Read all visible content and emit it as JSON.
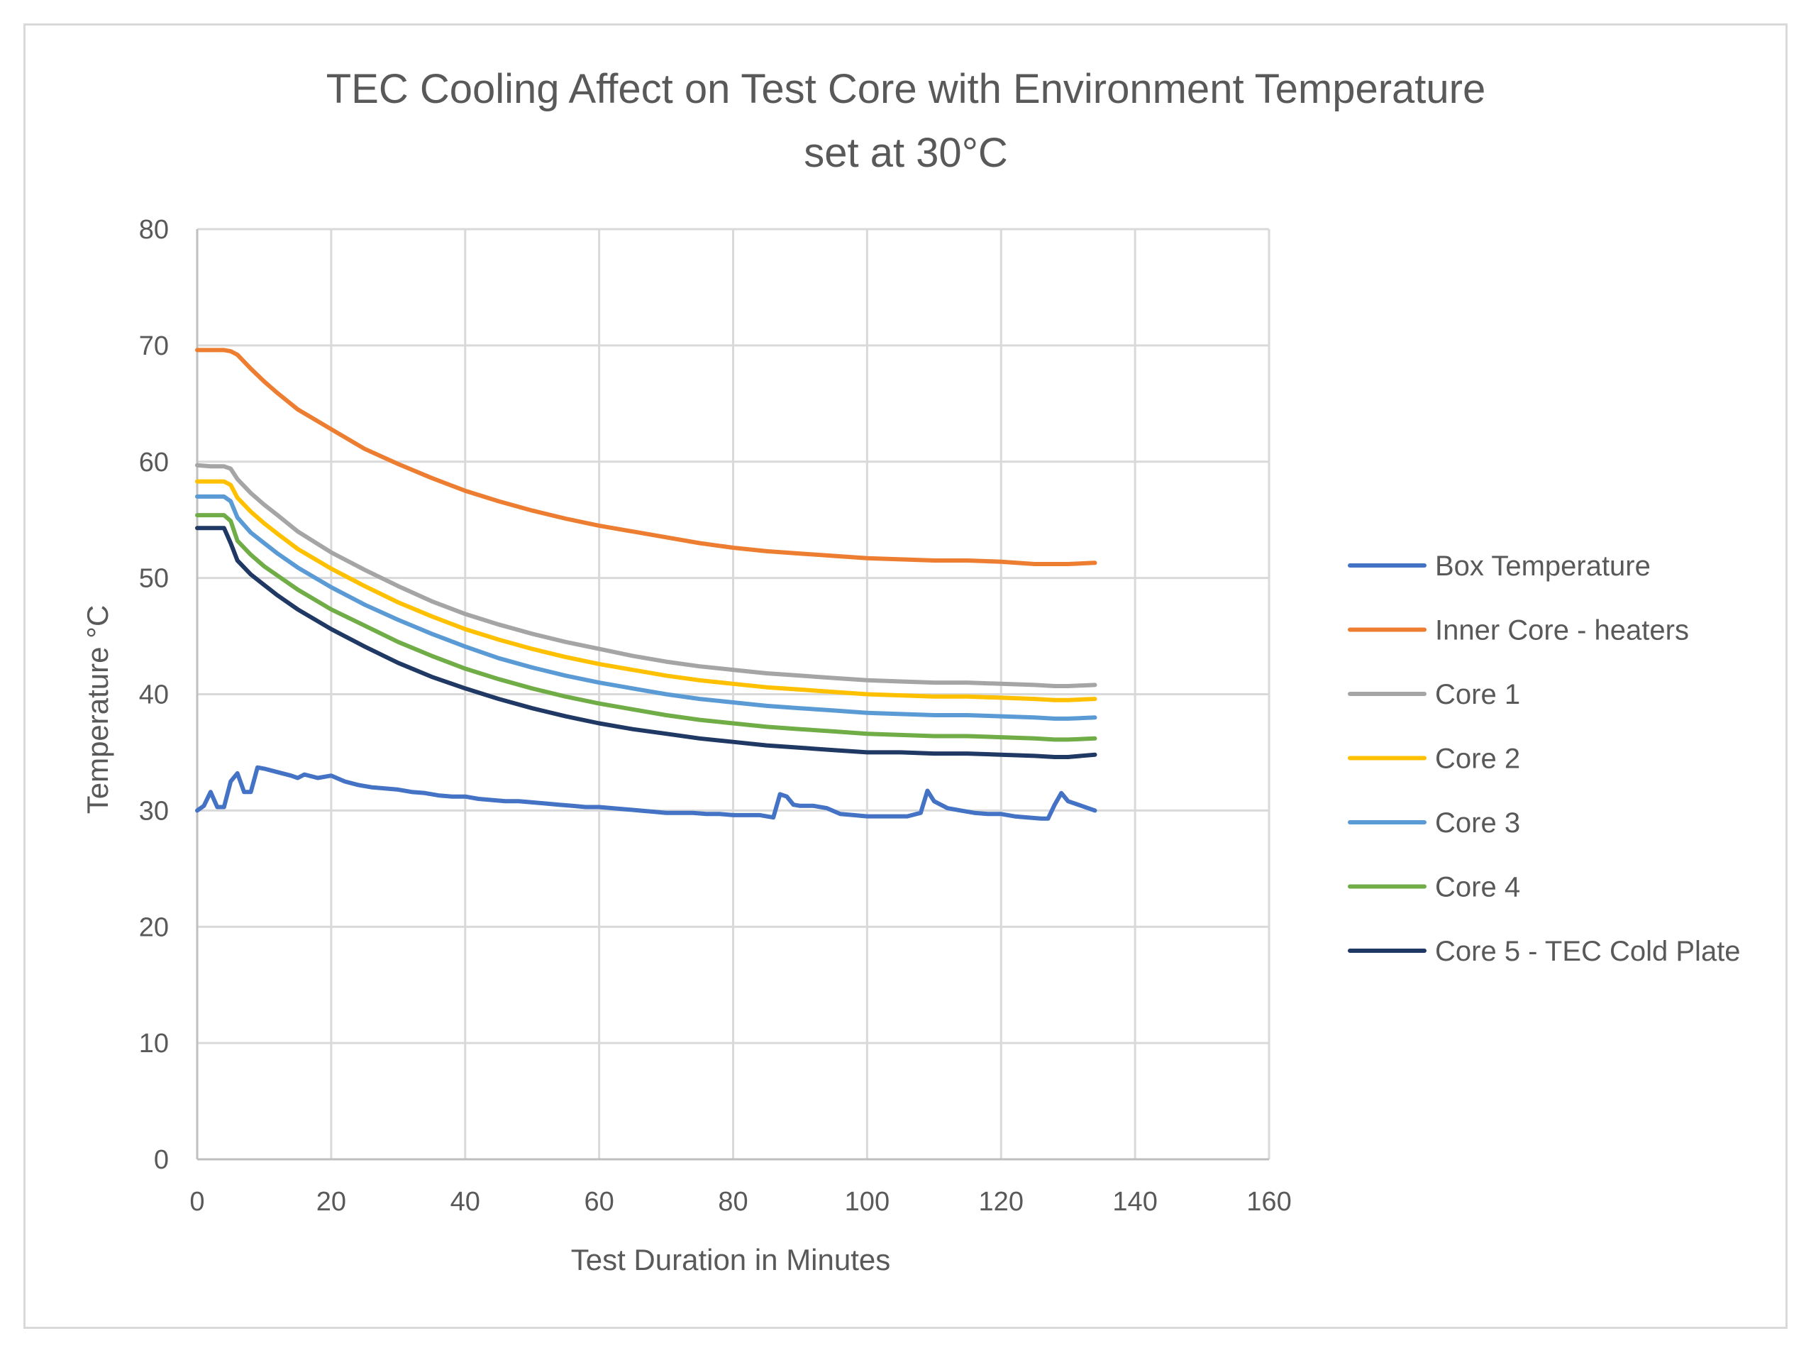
{
  "chart_data": {
    "type": "line",
    "title_lines": [
      "TEC Cooling Affect on Test Core with Environment Temperature",
      "set at 30°C"
    ],
    "xlabel": "Test Duration in Minutes",
    "ylabel": "Temperature °C",
    "xlim": [
      0,
      160
    ],
    "ylim": [
      0,
      80
    ],
    "xticks": [
      0,
      20,
      40,
      60,
      80,
      100,
      120,
      140,
      160
    ],
    "yticks": [
      0,
      10,
      20,
      30,
      40,
      50,
      60,
      70,
      80
    ],
    "grid": true,
    "legend_position": "right",
    "series": [
      {
        "name": "Box Temperature",
        "color": "#4472c4",
        "x": [
          0,
          1,
          2,
          3,
          4,
          5,
          6,
          7,
          8,
          9,
          10,
          12,
          14,
          15,
          16,
          18,
          20,
          22,
          24,
          26,
          28,
          30,
          32,
          34,
          36,
          38,
          40,
          42,
          44,
          46,
          48,
          50,
          52,
          54,
          56,
          58,
          60,
          62,
          64,
          66,
          68,
          70,
          72,
          74,
          76,
          78,
          80,
          82,
          84,
          86,
          87,
          88,
          89,
          90,
          92,
          94,
          96,
          98,
          100,
          102,
          104,
          106,
          108,
          109,
          110,
          112,
          114,
          116,
          118,
          120,
          122,
          124,
          126,
          127,
          128,
          129,
          130,
          132,
          134
        ],
        "values": [
          30,
          30.4,
          31.6,
          30.3,
          30.3,
          32.5,
          33.2,
          31.6,
          31.6,
          33.7,
          33.6,
          33.3,
          33.0,
          32.8,
          33.1,
          32.8,
          33.0,
          32.5,
          32.2,
          32.0,
          31.9,
          31.8,
          31.6,
          31.5,
          31.3,
          31.2,
          31.2,
          31.0,
          30.9,
          30.8,
          30.8,
          30.7,
          30.6,
          30.5,
          30.4,
          30.3,
          30.3,
          30.2,
          30.1,
          30.0,
          29.9,
          29.8,
          29.8,
          29.8,
          29.7,
          29.7,
          29.6,
          29.6,
          29.6,
          29.4,
          31.4,
          31.2,
          30.5,
          30.4,
          30.4,
          30.2,
          29.7,
          29.6,
          29.5,
          29.5,
          29.5,
          29.5,
          29.8,
          31.7,
          30.8,
          30.2,
          30.0,
          29.8,
          29.7,
          29.7,
          29.5,
          29.4,
          29.3,
          29.3,
          30.5,
          31.5,
          30.8,
          30.4,
          30.0
        ]
      },
      {
        "name": "Inner Core - heaters",
        "color": "#ed7d31",
        "x": [
          0,
          2,
          4,
          5,
          6,
          8,
          10,
          12,
          15,
          20,
          25,
          30,
          35,
          40,
          45,
          50,
          55,
          60,
          65,
          70,
          75,
          80,
          85,
          90,
          95,
          100,
          105,
          110,
          115,
          120,
          125,
          128,
          130,
          134
        ],
        "values": [
          69.6,
          69.6,
          69.6,
          69.5,
          69.2,
          68.0,
          66.9,
          65.9,
          64.5,
          62.8,
          61.1,
          59.8,
          58.6,
          57.5,
          56.6,
          55.8,
          55.1,
          54.5,
          54.0,
          53.5,
          53.0,
          52.6,
          52.3,
          52.1,
          51.9,
          51.7,
          51.6,
          51.5,
          51.5,
          51.4,
          51.2,
          51.2,
          51.2,
          51.3
        ]
      },
      {
        "name": "Core 1",
        "color": "#a5a5a5",
        "x": [
          0,
          2,
          4,
          5,
          6,
          8,
          10,
          12,
          15,
          20,
          25,
          30,
          35,
          40,
          45,
          50,
          55,
          60,
          65,
          70,
          75,
          80,
          85,
          90,
          95,
          100,
          105,
          110,
          115,
          120,
          125,
          128,
          130,
          134
        ],
        "values": [
          59.7,
          59.6,
          59.6,
          59.4,
          58.5,
          57.3,
          56.3,
          55.4,
          54.0,
          52.2,
          50.7,
          49.3,
          48.0,
          46.9,
          46.0,
          45.2,
          44.5,
          43.9,
          43.3,
          42.8,
          42.4,
          42.1,
          41.8,
          41.6,
          41.4,
          41.2,
          41.1,
          41.0,
          41.0,
          40.9,
          40.8,
          40.7,
          40.7,
          40.8
        ]
      },
      {
        "name": "Core 2",
        "color": "#ffc000",
        "x": [
          0,
          2,
          4,
          5,
          6,
          8,
          10,
          12,
          15,
          20,
          25,
          30,
          35,
          40,
          45,
          50,
          55,
          60,
          65,
          70,
          75,
          80,
          85,
          90,
          95,
          100,
          105,
          110,
          115,
          120,
          125,
          128,
          130,
          134
        ],
        "values": [
          58.3,
          58.3,
          58.3,
          58.0,
          56.9,
          55.7,
          54.7,
          53.8,
          52.5,
          50.8,
          49.3,
          47.9,
          46.7,
          45.6,
          44.7,
          43.9,
          43.2,
          42.6,
          42.1,
          41.6,
          41.2,
          40.9,
          40.6,
          40.4,
          40.2,
          40.0,
          39.9,
          39.8,
          39.8,
          39.7,
          39.6,
          39.5,
          39.5,
          39.6
        ]
      },
      {
        "name": "Core 3",
        "color": "#5b9bd5",
        "x": [
          0,
          2,
          4,
          5,
          6,
          8,
          10,
          12,
          15,
          20,
          25,
          30,
          35,
          40,
          45,
          50,
          55,
          60,
          65,
          70,
          75,
          80,
          85,
          90,
          95,
          100,
          105,
          110,
          115,
          120,
          125,
          128,
          130,
          134
        ],
        "values": [
          57.0,
          57.0,
          57.0,
          56.6,
          55.2,
          53.9,
          53.0,
          52.1,
          50.9,
          49.2,
          47.7,
          46.4,
          45.2,
          44.1,
          43.1,
          42.3,
          41.6,
          41.0,
          40.5,
          40.0,
          39.6,
          39.3,
          39.0,
          38.8,
          38.6,
          38.4,
          38.3,
          38.2,
          38.2,
          38.1,
          38.0,
          37.9,
          37.9,
          38.0
        ]
      },
      {
        "name": "Core 4",
        "color": "#70ad47",
        "x": [
          0,
          2,
          4,
          5,
          6,
          8,
          10,
          12,
          15,
          20,
          25,
          30,
          35,
          40,
          45,
          50,
          55,
          60,
          65,
          70,
          75,
          80,
          85,
          90,
          95,
          100,
          105,
          110,
          115,
          120,
          125,
          128,
          130,
          134
        ],
        "values": [
          55.4,
          55.4,
          55.4,
          54.9,
          53.2,
          52.0,
          51.0,
          50.2,
          49.0,
          47.3,
          45.9,
          44.5,
          43.3,
          42.2,
          41.3,
          40.5,
          39.8,
          39.2,
          38.7,
          38.2,
          37.8,
          37.5,
          37.2,
          37.0,
          36.8,
          36.6,
          36.5,
          36.4,
          36.4,
          36.3,
          36.2,
          36.1,
          36.1,
          36.2
        ]
      },
      {
        "name": "Core 5 - TEC Cold Plate",
        "color": "#1f3864",
        "x": [
          0,
          2,
          4,
          5,
          6,
          8,
          10,
          12,
          15,
          20,
          25,
          30,
          35,
          40,
          45,
          50,
          55,
          60,
          65,
          70,
          75,
          80,
          85,
          90,
          95,
          100,
          105,
          110,
          115,
          120,
          125,
          128,
          130,
          134
        ],
        "values": [
          54.3,
          54.3,
          54.3,
          53.0,
          51.5,
          50.3,
          49.4,
          48.5,
          47.3,
          45.6,
          44.1,
          42.7,
          41.5,
          40.5,
          39.6,
          38.8,
          38.1,
          37.5,
          37.0,
          36.6,
          36.2,
          35.9,
          35.6,
          35.4,
          35.2,
          35.0,
          35.0,
          34.9,
          34.9,
          34.8,
          34.7,
          34.6,
          34.6,
          34.8
        ]
      }
    ]
  }
}
